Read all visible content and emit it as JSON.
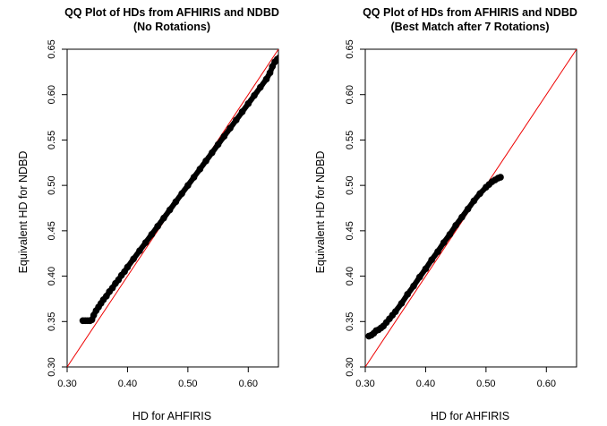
{
  "chart_data": [
    {
      "type": "scatter",
      "title": "QQ Plot of HDs from AFHIRIS and NDBD",
      "subtitle": "(No Rotations)",
      "xlabel": "HD  for  AHFIRIS",
      "ylabel": "Equivalent HD for NDBD",
      "xlim": [
        0.3,
        0.65
      ],
      "ylim": [
        0.3,
        0.65
      ],
      "x_ticks": [
        0.3,
        0.4,
        0.5,
        0.6
      ],
      "x_tick_labels": [
        "0.30",
        "0.40",
        "0.50",
        "0.60"
      ],
      "y_ticks": [
        0.3,
        0.35,
        0.4,
        0.45,
        0.5,
        0.55,
        0.6,
        0.65
      ],
      "y_tick_labels": [
        "0.30",
        "0.35",
        "0.40",
        "0.45",
        "0.50",
        "0.55",
        "0.60",
        "0.65"
      ],
      "reference_line": {
        "slope": 1,
        "intercept": 0,
        "color": "#ee0000"
      },
      "point_color": "#000000",
      "series": [
        {
          "x": [
            0.326,
            0.33,
            0.334,
            0.338,
            0.341,
            0.344,
            0.348,
            0.352,
            0.356,
            0.36,
            0.365,
            0.37,
            0.375,
            0.38,
            0.385,
            0.39,
            0.395,
            0.4,
            0.41,
            0.42,
            0.43,
            0.44,
            0.45,
            0.46,
            0.47,
            0.48,
            0.49,
            0.5,
            0.51,
            0.52,
            0.53,
            0.54,
            0.55,
            0.56,
            0.57,
            0.58,
            0.59,
            0.6,
            0.61,
            0.62,
            0.63,
            0.636,
            0.64,
            0.644,
            0.648,
            0.652
          ],
          "y": [
            0.351,
            0.351,
            0.351,
            0.351,
            0.352,
            0.357,
            0.362,
            0.366,
            0.37,
            0.374,
            0.378,
            0.383,
            0.387,
            0.392,
            0.396,
            0.401,
            0.405,
            0.41,
            0.419,
            0.428,
            0.437,
            0.446,
            0.455,
            0.464,
            0.473,
            0.482,
            0.491,
            0.5,
            0.509,
            0.518,
            0.527,
            0.536,
            0.545,
            0.554,
            0.563,
            0.572,
            0.581,
            0.59,
            0.599,
            0.608,
            0.617,
            0.624,
            0.631,
            0.636,
            0.639,
            0.641
          ]
        }
      ]
    },
    {
      "type": "scatter",
      "title": "QQ Plot of HDs from AFHIRIS and NDBD",
      "subtitle": "(Best Match after 7 Rotations)",
      "xlabel": "HD  for  AHFIRIS",
      "ylabel": "Equivalent HD for NDBD",
      "xlim": [
        0.3,
        0.65
      ],
      "ylim": [
        0.3,
        0.65
      ],
      "x_ticks": [
        0.3,
        0.4,
        0.5,
        0.6
      ],
      "x_tick_labels": [
        "0.30",
        "0.40",
        "0.50",
        "0.60"
      ],
      "y_ticks": [
        0.3,
        0.35,
        0.4,
        0.45,
        0.5,
        0.55,
        0.6,
        0.65
      ],
      "y_tick_labels": [
        "0.30",
        "0.35",
        "0.40",
        "0.45",
        "0.50",
        "0.55",
        "0.60",
        "0.65"
      ],
      "reference_line": {
        "slope": 1,
        "intercept": 0,
        "color": "#ee0000"
      },
      "point_color": "#000000",
      "series": [
        {
          "x": [
            0.306,
            0.31,
            0.314,
            0.318,
            0.322,
            0.326,
            0.33,
            0.335,
            0.34,
            0.345,
            0.35,
            0.36,
            0.37,
            0.38,
            0.39,
            0.4,
            0.41,
            0.42,
            0.43,
            0.44,
            0.45,
            0.46,
            0.47,
            0.48,
            0.49,
            0.5,
            0.505,
            0.51,
            0.515,
            0.52,
            0.524
          ],
          "y": [
            0.334,
            0.335,
            0.337,
            0.34,
            0.341,
            0.343,
            0.345,
            0.349,
            0.353,
            0.357,
            0.361,
            0.37,
            0.38,
            0.389,
            0.399,
            0.408,
            0.418,
            0.427,
            0.437,
            0.446,
            0.456,
            0.465,
            0.474,
            0.483,
            0.491,
            0.498,
            0.501,
            0.504,
            0.506,
            0.508,
            0.509
          ]
        }
      ]
    }
  ]
}
